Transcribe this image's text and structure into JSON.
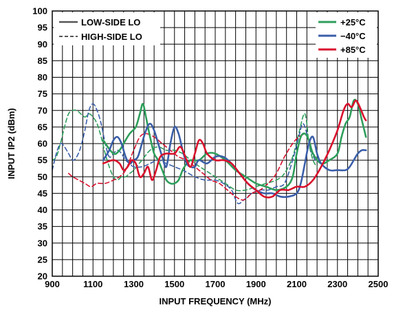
{
  "chart_data": {
    "type": "line",
    "xlabel": "INPUT FREQUENCY (MHz)",
    "ylabel": "INPUT IP2 (dBm)",
    "xlim": [
      900,
      2500
    ],
    "ylim": [
      20,
      100
    ],
    "x_ticks": [
      900,
      1100,
      1300,
      1500,
      1700,
      1900,
      2100,
      2300,
      2500
    ],
    "y_ticks": [
      20,
      25,
      30,
      35,
      40,
      45,
      50,
      55,
      60,
      65,
      70,
      75,
      80,
      85,
      90,
      95,
      100
    ],
    "x_gridlines_every": 50,
    "y_gridlines_every": 5,
    "grid": true,
    "legend_linestyle": {
      "placement": "top-left",
      "entries": [
        {
          "label": "LOW-SIDE LO",
          "style": "solid"
        },
        {
          "label": "HIGH-SIDE LO",
          "style": "dashed"
        }
      ]
    },
    "legend_temperature": {
      "placement": "top-right",
      "entries": [
        {
          "label": "+25°C",
          "color": "#2e9e5b"
        },
        {
          "label": "−40°C",
          "color": "#3a5ea8"
        },
        {
          "label": "+85°C",
          "color": "#d9102c"
        }
      ]
    },
    "series": [
      {
        "name": "+25°C",
        "style": "solid",
        "color": "#2e9e5b",
        "points": [
          [
            1150,
            61
          ],
          [
            1200,
            57
          ],
          [
            1230,
            58
          ],
          [
            1250,
            60
          ],
          [
            1280,
            63
          ],
          [
            1310,
            65
          ],
          [
            1330,
            69
          ],
          [
            1345,
            72
          ],
          [
            1360,
            68
          ],
          [
            1380,
            62
          ],
          [
            1400,
            57
          ],
          [
            1420,
            55
          ],
          [
            1440,
            52
          ],
          [
            1460,
            49
          ],
          [
            1480,
            48
          ],
          [
            1500,
            48
          ],
          [
            1520,
            49
          ],
          [
            1540,
            52
          ],
          [
            1560,
            54
          ],
          [
            1580,
            55
          ],
          [
            1620,
            55
          ],
          [
            1660,
            57
          ],
          [
            1700,
            57
          ],
          [
            1750,
            55
          ],
          [
            1800,
            52
          ],
          [
            1850,
            50
          ],
          [
            1900,
            48
          ],
          [
            1950,
            47
          ],
          [
            2000,
            46
          ],
          [
            2050,
            47
          ],
          [
            2080,
            50
          ],
          [
            2100,
            57
          ],
          [
            2120,
            62
          ],
          [
            2140,
            63
          ],
          [
            2160,
            61
          ],
          [
            2180,
            57
          ],
          [
            2220,
            54
          ],
          [
            2260,
            55
          ],
          [
            2300,
            57
          ],
          [
            2320,
            62
          ],
          [
            2340,
            66
          ],
          [
            2360,
            68
          ],
          [
            2380,
            73
          ],
          [
            2400,
            72
          ],
          [
            2420,
            67
          ],
          [
            2440,
            62
          ]
        ]
      },
      {
        "name": "−40°C",
        "style": "solid",
        "color": "#3a5ea8",
        "points": [
          [
            1150,
            55
          ],
          [
            1180,
            58
          ],
          [
            1200,
            61
          ],
          [
            1220,
            62
          ],
          [
            1240,
            60
          ],
          [
            1260,
            56
          ],
          [
            1280,
            54
          ],
          [
            1300,
            55
          ],
          [
            1320,
            56
          ],
          [
            1340,
            60
          ],
          [
            1360,
            64
          ],
          [
            1380,
            66
          ],
          [
            1400,
            64
          ],
          [
            1420,
            60
          ],
          [
            1440,
            56
          ],
          [
            1460,
            53
          ],
          [
            1480,
            60
          ],
          [
            1500,
            65
          ],
          [
            1520,
            63
          ],
          [
            1540,
            58
          ],
          [
            1560,
            54
          ],
          [
            1580,
            53
          ],
          [
            1600,
            53
          ],
          [
            1620,
            55
          ],
          [
            1660,
            54
          ],
          [
            1700,
            56
          ],
          [
            1740,
            56
          ],
          [
            1780,
            54
          ],
          [
            1820,
            51
          ],
          [
            1860,
            48
          ],
          [
            1900,
            46
          ],
          [
            1940,
            45
          ],
          [
            1980,
            45
          ],
          [
            2020,
            44
          ],
          [
            2060,
            44
          ],
          [
            2100,
            45
          ],
          [
            2120,
            48
          ],
          [
            2140,
            54
          ],
          [
            2160,
            60
          ],
          [
            2180,
            62
          ],
          [
            2200,
            57
          ],
          [
            2220,
            54
          ],
          [
            2260,
            52
          ],
          [
            2300,
            52
          ],
          [
            2340,
            52
          ],
          [
            2360,
            53
          ],
          [
            2380,
            55
          ],
          [
            2400,
            57
          ],
          [
            2420,
            58
          ],
          [
            2440,
            58
          ]
        ]
      },
      {
        "name": "+85°C",
        "style": "solid",
        "color": "#d9102c",
        "points": [
          [
            1150,
            54
          ],
          [
            1200,
            55
          ],
          [
            1230,
            54
          ],
          [
            1250,
            52
          ],
          [
            1270,
            53
          ],
          [
            1290,
            55
          ],
          [
            1310,
            54
          ],
          [
            1330,
            50
          ],
          [
            1350,
            51
          ],
          [
            1370,
            53
          ],
          [
            1390,
            49
          ],
          [
            1410,
            52
          ],
          [
            1430,
            56
          ],
          [
            1460,
            57
          ],
          [
            1500,
            57
          ],
          [
            1530,
            59
          ],
          [
            1560,
            55
          ],
          [
            1580,
            53
          ],
          [
            1600,
            57
          ],
          [
            1620,
            61
          ],
          [
            1640,
            60
          ],
          [
            1660,
            57
          ],
          [
            1700,
            55
          ],
          [
            1740,
            55
          ],
          [
            1780,
            54
          ],
          [
            1820,
            51
          ],
          [
            1860,
            48
          ],
          [
            1900,
            46
          ],
          [
            1940,
            44
          ],
          [
            1980,
            44
          ],
          [
            2020,
            46
          ],
          [
            2060,
            46
          ],
          [
            2100,
            47
          ],
          [
            2140,
            47
          ],
          [
            2180,
            49
          ],
          [
            2220,
            53
          ],
          [
            2260,
            58
          ],
          [
            2300,
            64
          ],
          [
            2330,
            70
          ],
          [
            2350,
            72
          ],
          [
            2370,
            71
          ],
          [
            2390,
            73
          ],
          [
            2410,
            71
          ],
          [
            2430,
            68
          ],
          [
            2440,
            67
          ]
        ]
      },
      {
        "name": "+25°C",
        "style": "dashed",
        "color": "#2e9e5b",
        "points": [
          [
            900,
            55
          ],
          [
            920,
            56
          ],
          [
            940,
            60
          ],
          [
            960,
            65
          ],
          [
            980,
            69
          ],
          [
            1000,
            70
          ],
          [
            1020,
            70
          ],
          [
            1040,
            69
          ],
          [
            1060,
            68
          ],
          [
            1080,
            69
          ],
          [
            1100,
            68
          ],
          [
            1120,
            66
          ],
          [
            1140,
            62
          ],
          [
            1160,
            57
          ],
          [
            1180,
            53
          ],
          [
            1200,
            50
          ],
          [
            1220,
            49
          ],
          [
            1240,
            50
          ],
          [
            1260,
            50
          ],
          [
            1280,
            51
          ],
          [
            1300,
            52
          ],
          [
            1340,
            55
          ],
          [
            1380,
            58
          ],
          [
            1420,
            59
          ],
          [
            1460,
            58
          ],
          [
            1500,
            58
          ],
          [
            1540,
            57
          ],
          [
            1560,
            56
          ],
          [
            1580,
            55
          ],
          [
            1600,
            54
          ],
          [
            1650,
            52
          ],
          [
            1700,
            50
          ],
          [
            1750,
            48
          ],
          [
            1800,
            46
          ],
          [
            1850,
            46
          ],
          [
            1900,
            47
          ],
          [
            1950,
            48
          ],
          [
            2000,
            49
          ],
          [
            2040,
            51
          ],
          [
            2080,
            56
          ],
          [
            2110,
            63
          ],
          [
            2130,
            68
          ],
          [
            2140,
            69
          ],
          [
            2150,
            66
          ],
          [
            2160,
            60
          ],
          [
            2180,
            55
          ],
          [
            2200,
            53
          ]
        ]
      },
      {
        "name": "−40°C",
        "style": "dashed",
        "color": "#3a5ea8",
        "points": [
          [
            900,
            52
          ],
          [
            920,
            57
          ],
          [
            940,
            60
          ],
          [
            960,
            59
          ],
          [
            980,
            57
          ],
          [
            1000,
            55
          ],
          [
            1020,
            56
          ],
          [
            1040,
            59
          ],
          [
            1060,
            64
          ],
          [
            1080,
            70
          ],
          [
            1100,
            72
          ],
          [
            1120,
            70
          ],
          [
            1140,
            66
          ],
          [
            1160,
            60
          ],
          [
            1180,
            56
          ],
          [
            1200,
            57
          ],
          [
            1220,
            58
          ],
          [
            1240,
            57
          ],
          [
            1260,
            55
          ],
          [
            1280,
            54
          ],
          [
            1300,
            53
          ],
          [
            1340,
            53
          ],
          [
            1380,
            54
          ],
          [
            1420,
            55
          ],
          [
            1460,
            54
          ],
          [
            1500,
            53
          ],
          [
            1540,
            52
          ],
          [
            1570,
            51
          ],
          [
            1600,
            50
          ],
          [
            1650,
            49
          ],
          [
            1700,
            49
          ],
          [
            1740,
            48
          ],
          [
            1780,
            46
          ],
          [
            1810,
            42
          ],
          [
            1840,
            43
          ],
          [
            1880,
            45
          ],
          [
            1920,
            46
          ],
          [
            1960,
            46
          ],
          [
            2000,
            47
          ],
          [
            2040,
            48
          ],
          [
            2080,
            55
          ],
          [
            2110,
            62
          ],
          [
            2130,
            66
          ],
          [
            2150,
            63
          ],
          [
            2170,
            58
          ],
          [
            2190,
            55
          ]
        ]
      },
      {
        "name": "+85°C",
        "style": "dashed",
        "color": "#d9102c",
        "points": [
          [
            980,
            51
          ],
          [
            1000,
            50
          ],
          [
            1030,
            49
          ],
          [
            1060,
            48
          ],
          [
            1090,
            47
          ],
          [
            1120,
            48
          ],
          [
            1160,
            48
          ],
          [
            1200,
            49
          ],
          [
            1230,
            50
          ],
          [
            1260,
            52
          ],
          [
            1300,
            58
          ],
          [
            1330,
            62
          ],
          [
            1360,
            63
          ],
          [
            1400,
            62
          ],
          [
            1440,
            60
          ],
          [
            1480,
            58
          ],
          [
            1520,
            56
          ],
          [
            1560,
            55
          ],
          [
            1600,
            53
          ],
          [
            1640,
            51
          ],
          [
            1680,
            49
          ],
          [
            1720,
            48
          ],
          [
            1760,
            46
          ],
          [
            1800,
            44
          ],
          [
            1840,
            43
          ],
          [
            1880,
            45
          ],
          [
            1920,
            46
          ],
          [
            1960,
            48
          ],
          [
            2000,
            51
          ],
          [
            2040,
            56
          ],
          [
            2080,
            60
          ],
          [
            2110,
            62
          ],
          [
            2140,
            63
          ]
        ]
      }
    ]
  }
}
